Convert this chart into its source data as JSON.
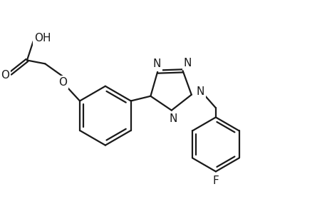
{
  "background_color": "#ffffff",
  "line_color": "#1a1a1a",
  "line_width": 1.6,
  "font_size": 10,
  "fig_width": 4.6,
  "fig_height": 3.0,
  "dpi": 100,
  "xlim": [
    0,
    9.2
  ],
  "ylim": [
    0,
    6.0
  ]
}
